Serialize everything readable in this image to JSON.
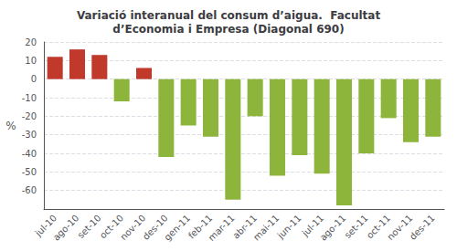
{
  "chart_data": {
    "type": "bar",
    "title": "Variació interanual del consum d’aigua.  Facultat\nd’Economia i Empresa (Diagonal 690)",
    "ylabel": "%",
    "categories": [
      "jul-10",
      "ago-10",
      "set-10",
      "oct-10",
      "nov-10",
      "des-10",
      "gen-11",
      "feb-11",
      "mar-11",
      "abr-11",
      "mai-11",
      "jun-11",
      "jul-11",
      "ago-11",
      "set-11",
      "oct-11",
      "nov-11",
      "des-11"
    ],
    "values": [
      12,
      16,
      13,
      -12,
      6,
      -42,
      -25,
      -31,
      -65,
      -20,
      -52,
      -41,
      -51,
      -68,
      -40,
      -21,
      -34,
      -31
    ],
    "colors": [
      "#c0392b",
      "#c0392b",
      "#c0392b",
      "#8db53c",
      "#c0392b",
      "#8db53c",
      "#8db53c",
      "#8db53c",
      "#8db53c",
      "#8db53c",
      "#8db53c",
      "#8db53c",
      "#8db53c",
      "#8db53c",
      "#8db53c",
      "#8db53c",
      "#8db53c",
      "#8db53c"
    ],
    "ylim": [
      -70,
      20
    ],
    "yticks": [
      -60,
      -50,
      -40,
      -30,
      -20,
      -10,
      0,
      10,
      20
    ],
    "grid": true
  }
}
